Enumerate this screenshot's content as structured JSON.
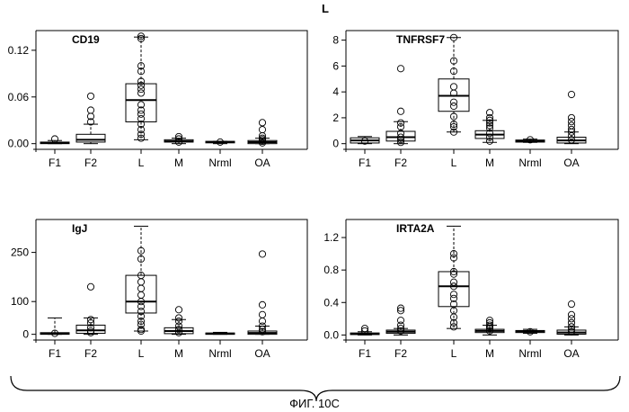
{
  "figure": {
    "top_label": "L",
    "caption": "ФИГ. 10С"
  },
  "chart_data": [
    {
      "type": "box",
      "title": "CD19",
      "categories": [
        "F1",
        "F2",
        "L",
        "M",
        "Nrml",
        "OA"
      ],
      "yticks": [
        0.0,
        0.06,
        0.12
      ],
      "ytick_labels": [
        "0.00",
        "0.06",
        "0.12"
      ],
      "ylim": [
        -0.005,
        0.143
      ],
      "boxes": [
        {
          "q1": 0.0,
          "median": 0.001,
          "q3": 0.002,
          "lo": 0.0,
          "hi": 0.004,
          "outliers": [
            0.006
          ]
        },
        {
          "q1": 0.002,
          "median": 0.005,
          "q3": 0.012,
          "lo": 0.0,
          "hi": 0.025,
          "outliers": [
            0.028,
            0.035,
            0.043,
            0.061
          ]
        },
        {
          "q1": 0.028,
          "median": 0.056,
          "q3": 0.077,
          "lo": 0.005,
          "hi": 0.137,
          "outliers": [
            0.135,
            0.138,
            0.1,
            0.093,
            0.08,
            0.075,
            0.07,
            0.065,
            0.05,
            0.043,
            0.038,
            0.032,
            0.025,
            0.018,
            0.012,
            0.007
          ]
        },
        {
          "q1": 0.002,
          "median": 0.003,
          "q3": 0.005,
          "lo": 0.0,
          "hi": 0.007,
          "outliers": [
            0.009,
            0.006,
            0.002
          ]
        },
        {
          "q1": 0.001,
          "median": 0.002,
          "q3": 0.003,
          "lo": 0.0,
          "hi": 0.003,
          "outliers": [
            0.002
          ]
        },
        {
          "q1": 0.0,
          "median": 0.002,
          "q3": 0.004,
          "lo": 0.0,
          "hi": 0.007,
          "outliers": [
            0.027,
            0.018,
            0.01,
            0.007,
            0.005,
            0.003,
            0.001
          ]
        }
      ]
    },
    {
      "type": "box",
      "title": "TNFRSF7",
      "categories": [
        "F1",
        "F2",
        "L",
        "M",
        "Nrml",
        "OA"
      ],
      "yticks": [
        0,
        2,
        4,
        6,
        8
      ],
      "ytick_labels": [
        "0",
        "2",
        "4",
        "6",
        "8"
      ],
      "ylim": [
        -0.3,
        8.6
      ],
      "boxes": [
        {
          "q1": 0.05,
          "median": 0.25,
          "q3": 0.45,
          "lo": 0.0,
          "hi": 0.55,
          "outliers": [
            0.2
          ]
        },
        {
          "q1": 0.2,
          "median": 0.5,
          "q3": 0.95,
          "lo": 0.0,
          "hi": 1.7,
          "outliers": [
            5.8,
            2.5,
            1.6,
            1.3,
            0.8,
            0.5,
            0.3,
            0.1
          ]
        },
        {
          "q1": 2.5,
          "median": 3.7,
          "q3": 5.0,
          "lo": 0.9,
          "hi": 8.2,
          "outliers": [
            8.2,
            6.4,
            5.6,
            4.4,
            3.9,
            3.2,
            2.9,
            2.1,
            1.5,
            1.3,
            0.9
          ]
        },
        {
          "q1": 0.4,
          "median": 0.7,
          "q3": 1.0,
          "lo": 0.1,
          "hi": 1.8,
          "outliers": [
            2.4,
            2.0,
            1.8,
            1.6,
            1.4,
            1.2,
            0.8,
            0.5,
            0.2
          ]
        },
        {
          "q1": 0.12,
          "median": 0.2,
          "q3": 0.28,
          "lo": 0.1,
          "hi": 0.35,
          "outliers": [
            0.3
          ]
        },
        {
          "q1": 0.05,
          "median": 0.25,
          "q3": 0.5,
          "lo": 0.0,
          "hi": 0.9,
          "outliers": [
            3.8,
            2.0,
            1.7,
            1.4,
            1.1,
            0.9,
            0.6,
            0.3
          ]
        }
      ]
    },
    {
      "type": "box",
      "title": "IgJ",
      "categories": [
        "F1",
        "F2",
        "L",
        "M",
        "Nrml",
        "OA"
      ],
      "yticks": [
        0,
        100,
        250
      ],
      "ytick_labels": [
        "0",
        "100",
        "250"
      ],
      "ylim": [
        -12,
        345
      ],
      "boxes": [
        {
          "q1": 0,
          "median": 2,
          "q3": 5,
          "lo": 0,
          "hi": 50,
          "outliers": [
            3
          ]
        },
        {
          "q1": 3,
          "median": 12,
          "q3": 28,
          "lo": 0,
          "hi": 50,
          "outliers": [
            145,
            45,
            35,
            20,
            10,
            5
          ]
        },
        {
          "q1": 65,
          "median": 100,
          "q3": 180,
          "lo": 10,
          "hi": 330,
          "outliers": [
            255,
            230,
            180,
            160,
            140,
            120,
            100,
            85,
            70,
            55,
            40,
            30,
            15,
            10
          ]
        },
        {
          "q1": 2,
          "median": 10,
          "q3": 20,
          "lo": 0,
          "hi": 45,
          "outliers": [
            75,
            50,
            40,
            25,
            15,
            5
          ]
        },
        {
          "q1": 0,
          "median": 2,
          "q3": 4,
          "lo": 0,
          "hi": 6,
          "outliers": []
        },
        {
          "q1": 0,
          "median": 4,
          "q3": 10,
          "lo": 0,
          "hi": 25,
          "outliers": [
            245,
            90,
            60,
            40,
            25,
            15,
            8
          ]
        }
      ]
    },
    {
      "type": "box",
      "title": "IRTA2A",
      "categories": [
        "F1",
        "F2",
        "L",
        "M",
        "Nrml",
        "OA"
      ],
      "yticks": [
        0.0,
        0.4,
        0.8,
        1.2
      ],
      "ytick_labels": [
        "0.0",
        "0.4",
        "0.8",
        "1.2"
      ],
      "ylim": [
        -0.04,
        1.4
      ],
      "boxes": [
        {
          "q1": 0.005,
          "median": 0.015,
          "q3": 0.025,
          "lo": 0.0,
          "hi": 0.04,
          "outliers": [
            0.08,
            0.05
          ]
        },
        {
          "q1": 0.02,
          "median": 0.04,
          "q3": 0.06,
          "lo": 0.0,
          "hi": 0.08,
          "outliers": [
            0.33,
            0.3,
            0.18,
            0.12,
            0.08,
            0.05
          ]
        },
        {
          "q1": 0.35,
          "median": 0.6,
          "q3": 0.78,
          "lo": 0.08,
          "hi": 1.34,
          "outliers": [
            1.0,
            0.95,
            0.78,
            0.75,
            0.65,
            0.6,
            0.5,
            0.45,
            0.38,
            0.3,
            0.22,
            0.15,
            0.1
          ]
        },
        {
          "q1": 0.03,
          "median": 0.05,
          "q3": 0.07,
          "lo": 0.0,
          "hi": 0.12,
          "outliers": [
            0.18,
            0.15,
            0.12,
            0.1,
            0.08,
            0.05
          ]
        },
        {
          "q1": 0.03,
          "median": 0.045,
          "q3": 0.055,
          "lo": 0.02,
          "hi": 0.07,
          "outliers": [
            0.04
          ]
        },
        {
          "q1": 0.01,
          "median": 0.03,
          "q3": 0.06,
          "lo": 0.0,
          "hi": 0.1,
          "outliers": [
            0.38,
            0.25,
            0.2,
            0.15,
            0.1,
            0.07,
            0.04
          ]
        }
      ]
    }
  ]
}
